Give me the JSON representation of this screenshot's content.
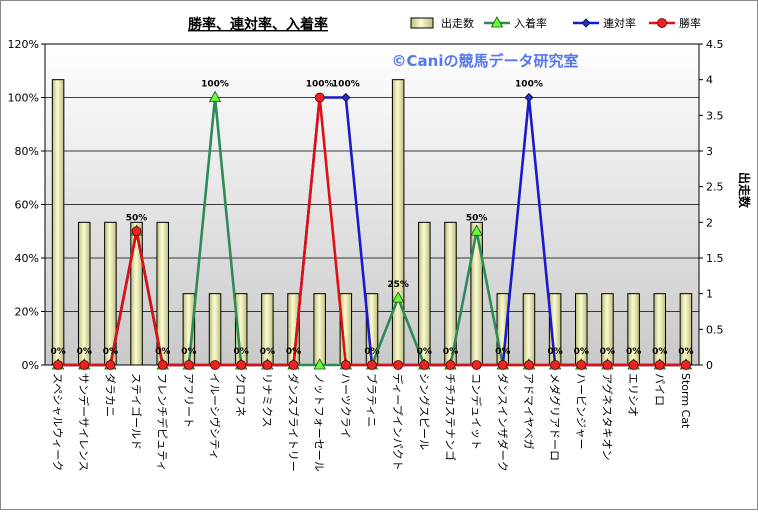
{
  "chart_data": {
    "type": "bar",
    "title": "勝率、連対率、入着率",
    "watermark": "©Caniの競馬データ研究室",
    "y_left": {
      "min": 0,
      "max": 1.2,
      "step": 0.2,
      "format": "percent"
    },
    "y_right": {
      "min": 0,
      "max": 4.5,
      "step": 0.5,
      "label": "出走数"
    },
    "categories": [
      "スペシャルウィーク",
      "サンデーサイレンス",
      "ダラカニ",
      "ステイゴールド",
      "フレンチデピュティ",
      "アフリート",
      "イルーシヴシティ",
      "クロフネ",
      "リナミクス",
      "ダンスブライトリー",
      "ノットフォーセール",
      "ハーツクライ",
      "ブラティニ",
      "ディープインパクト",
      "シングスピール",
      "チチカステナンゴ",
      "コンデュイット",
      "ダンスインザダーク",
      "アドマイヤベガ",
      "メダグリアドーロ",
      "ハービンジャー",
      "アグネスタキオン",
      "エリシオ",
      "パイロ",
      "Storm Cat"
    ],
    "series": [
      {
        "name": "出走数",
        "kind": "bar",
        "axis": "right",
        "values": [
          4,
          2,
          2,
          2,
          2,
          1,
          1,
          1,
          1,
          1,
          1,
          1,
          1,
          4,
          2,
          2,
          2,
          1,
          1,
          1,
          1,
          1,
          1,
          1,
          1
        ]
      },
      {
        "name": "入着率",
        "kind": "line",
        "axis": "left",
        "marker": "triangle",
        "values": [
          0,
          0,
          0,
          0.5,
          0,
          0,
          1,
          0,
          0,
          0,
          0,
          0,
          0,
          0.25,
          0,
          0,
          0.5,
          0,
          0,
          0,
          0,
          0,
          0,
          0,
          0
        ]
      },
      {
        "name": "連対率",
        "kind": "line",
        "axis": "left",
        "marker": "diamond",
        "values": [
          0,
          0,
          0,
          0.5,
          0,
          0,
          0,
          0,
          0,
          0,
          1,
          1,
          0,
          0,
          0,
          0,
          0,
          0,
          1,
          0,
          0,
          0,
          0,
          0,
          0
        ]
      },
      {
        "name": "勝率",
        "kind": "line",
        "axis": "left",
        "marker": "circle",
        "values": [
          0,
          0,
          0,
          0.5,
          0,
          0,
          0,
          0,
          0,
          0,
          1,
          0,
          0,
          0,
          0,
          0,
          0,
          0,
          0,
          0,
          0,
          0,
          0,
          0,
          0
        ]
      }
    ],
    "data_labels": [
      "0%",
      "0%",
      "0%",
      "50%",
      "0%",
      "0%",
      "100%",
      "0%",
      "0%",
      "0%",
      "100%",
      "100%",
      "0%",
      "25%",
      "0%",
      "0%",
      "50%",
      "0%",
      "100%",
      "0%",
      "0%",
      "0%",
      "0%",
      "0%",
      "0%"
    ],
    "legend_position": "top-right",
    "grid": true,
    "colors": {
      "bar_fill_light": "#fbfbd5",
      "bar_fill_dark": "#bfbf7a",
      "bar_stroke": "#000000",
      "line_place": "#2e8b57",
      "marker_place": "#66ff33",
      "line_rentai": "#1a1acc",
      "marker_rentai": "#2233bb",
      "line_win": "#dd1111",
      "marker_win": "#ee2222",
      "plot_top": "#ffffff",
      "plot_bottom": "#c9c9c9",
      "gridline": "#000000",
      "watermark": "#5577ee",
      "frame": "#888888"
    }
  }
}
